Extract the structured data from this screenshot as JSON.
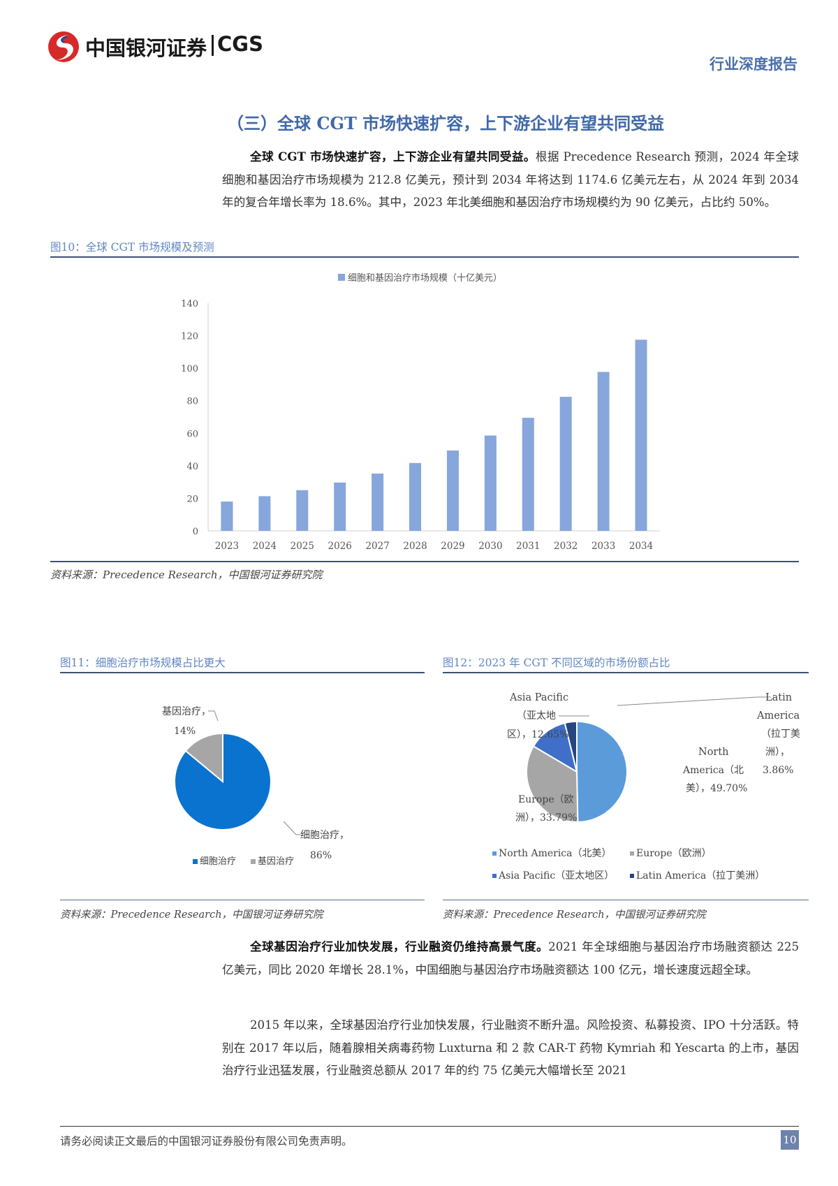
{
  "header": {
    "logo_text": "中国银河证券",
    "logo_en": "CGS",
    "report_type": "行业深度报告"
  },
  "section": {
    "title": "（三）全球 CGT 市场快速扩容，上下游企业有望共同受益"
  },
  "para1": {
    "lead": "全球 CGT 市场快速扩容，上下游企业有望共同受益。",
    "body": "根据 Precedence Research 预测，2024 年全球细胞和基因治疗市场规模为 212.8 亿美元，预计到 2034 年将达到 1174.6 亿美元左右，从 2024 年到 2034 年的复合年增长率为 18.6%。其中，2023 年北美细胞和基因治疗市场规模约为 90 亿美元，占比约 50%。"
  },
  "fig10": {
    "caption": "图10：全球 CGT 市场规模及预测",
    "source": "资料来源：Precedence Research，中国银河证券研究院"
  },
  "fig11": {
    "caption": "图11：细胞治疗市场规模占比更大",
    "source": "资料来源：Precedence Research，中国银河证券研究院"
  },
  "fig12": {
    "caption": "图12：2023 年 CGT 不同区域的市场份额占比",
    "source": "资料来源：Precedence Research，中国银河证券研究院"
  },
  "chart_data": [
    {
      "type": "bar",
      "legend": "细胞和基因治疗市场规模（十亿美元）",
      "categories": [
        "2023",
        "2024",
        "2025",
        "2026",
        "2027",
        "2028",
        "2029",
        "2030",
        "2031",
        "2032",
        "2033",
        "2034"
      ],
      "values": [
        18,
        21.3,
        25,
        29.7,
        35.2,
        41.7,
        49.4,
        58.6,
        69.5,
        82.4,
        97.7,
        117.5
      ],
      "y_ticks": [
        "0",
        "20",
        "40",
        "60",
        "80",
        "100",
        "120",
        "140"
      ],
      "ylim": [
        0,
        140
      ],
      "color": "#86a6dc"
    },
    {
      "type": "pie",
      "slices": [
        {
          "name": "细胞治疗",
          "value": 86,
          "label": "细胞治疗，",
          "pct": "86%",
          "color": "#0a73cf"
        },
        {
          "name": "基因治疗",
          "value": 14,
          "label": "基因治疗，",
          "pct": "14%",
          "color": "#a6a6a6"
        }
      ],
      "legend": [
        "细胞治疗",
        "基因治疗"
      ]
    },
    {
      "type": "pie",
      "slices": [
        {
          "name": "North America（北美）",
          "value": 49.7,
          "color": "#5b9bd9"
        },
        {
          "name": "Europe（欧洲）",
          "value": 33.79,
          "color": "#a6a6a6"
        },
        {
          "name": "Asia Pacific（亚太地区）",
          "value": 12.65,
          "color": "#3f6fc8"
        },
        {
          "name": "Latin America（拉丁美洲）",
          "value": 3.86,
          "color": "#27467e"
        }
      ],
      "labels": {
        "na": [
          "North",
          "America（北",
          "美），49.70%"
        ],
        "eu": [
          "Europe（欧",
          "洲），33.79%"
        ],
        "ap": [
          "Asia Pacific",
          "（亚太地",
          "区），12.65%"
        ],
        "la": [
          "Latin",
          "America",
          "（拉丁美",
          "洲），",
          "3.86%"
        ]
      },
      "legend": [
        "North America（北美）",
        "Europe（欧洲）",
        "Asia Pacific（亚太地区）",
        "Latin America（拉丁美洲）"
      ]
    }
  ],
  "para2": {
    "lead": "全球基因治疗行业加快发展，行业融资仍维持高景气度。",
    "body": "2021 年全球细胞与基因治疗市场融资额达 225 亿美元，同比 2020 年增长 28.1%，中国细胞与基因治疗市场融资额达 100 亿元，增长速度远超全球。"
  },
  "para3": {
    "body": "2015 年以来，全球基因治疗行业加快发展，行业融资不断升温。风险投资、私募投资、IPO 十分活跃。特别在 2017 年以后，随着腺相关病毒药物 Luxturna 和 2 款 CAR-T 药物 Kymriah 和 Yescarta 的上市，基因治疗行业迅猛发展，行业融资总额从 2017 年的约 75 亿美元大幅增长至 2021"
  },
  "footer": {
    "disclaimer": "请务必阅读正文最后的中国银河证券股份有限公司免责声明。",
    "page": "10"
  }
}
